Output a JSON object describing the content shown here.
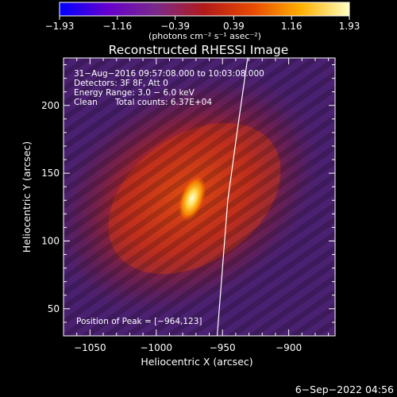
{
  "chart_data": {
    "type": "heatmap",
    "title": "Reconstructed RHESSI Image",
    "xlabel": "Heliocentric X (arcsec)",
    "ylabel": "Heliocentric Y (arcsec)",
    "xlim": [
      -1070,
      -865
    ],
    "ylim": [
      30,
      235
    ],
    "x_ticks": [
      -1050,
      -1000,
      -950,
      -900
    ],
    "x_tick_labels": [
      "−1050",
      "−1000",
      "−950",
      "−900"
    ],
    "y_ticks": [
      50,
      100,
      150,
      200
    ],
    "y_tick_labels": [
      "50",
      "100",
      "150",
      "200"
    ],
    "colorbar": {
      "range": [
        -1.93,
        1.93
      ],
      "ticks": [
        -1.93,
        -1.16,
        -0.39,
        0.39,
        1.16,
        1.93
      ],
      "tick_labels": [
        "−1.93",
        "−1.16",
        "−0.39",
        "0.39",
        "1.16",
        "1.93"
      ],
      "units": "(photons cm⁻² s⁻¹ asec⁻²)",
      "colors": [
        "#0000ff",
        "#6600cc",
        "#7a2a8a",
        "#b21a1a",
        "#e84a00",
        "#ffb000",
        "#ffffc0"
      ]
    },
    "annotations": {
      "time_range": "31−Aug−2016 09:57:08.000 to 10:03:08.000",
      "detectors": "Detectors: 3F 8F, Att 0",
      "energy_range": "Energy Range: 3.0 − 6.0 keV",
      "clean": "Clean",
      "total_counts": "Total counts: 6.37E+04",
      "peak_position": "Position of Peak = [−964,123]"
    },
    "peak": {
      "x": -964,
      "y": 123
    },
    "limb_curve": [
      [
        -954,
        30
      ],
      [
        -950,
        80
      ],
      [
        -946,
        130
      ],
      [
        -939,
        180
      ],
      [
        -931,
        235
      ]
    ],
    "timestamp": "6−Sep−2022 04:56"
  }
}
